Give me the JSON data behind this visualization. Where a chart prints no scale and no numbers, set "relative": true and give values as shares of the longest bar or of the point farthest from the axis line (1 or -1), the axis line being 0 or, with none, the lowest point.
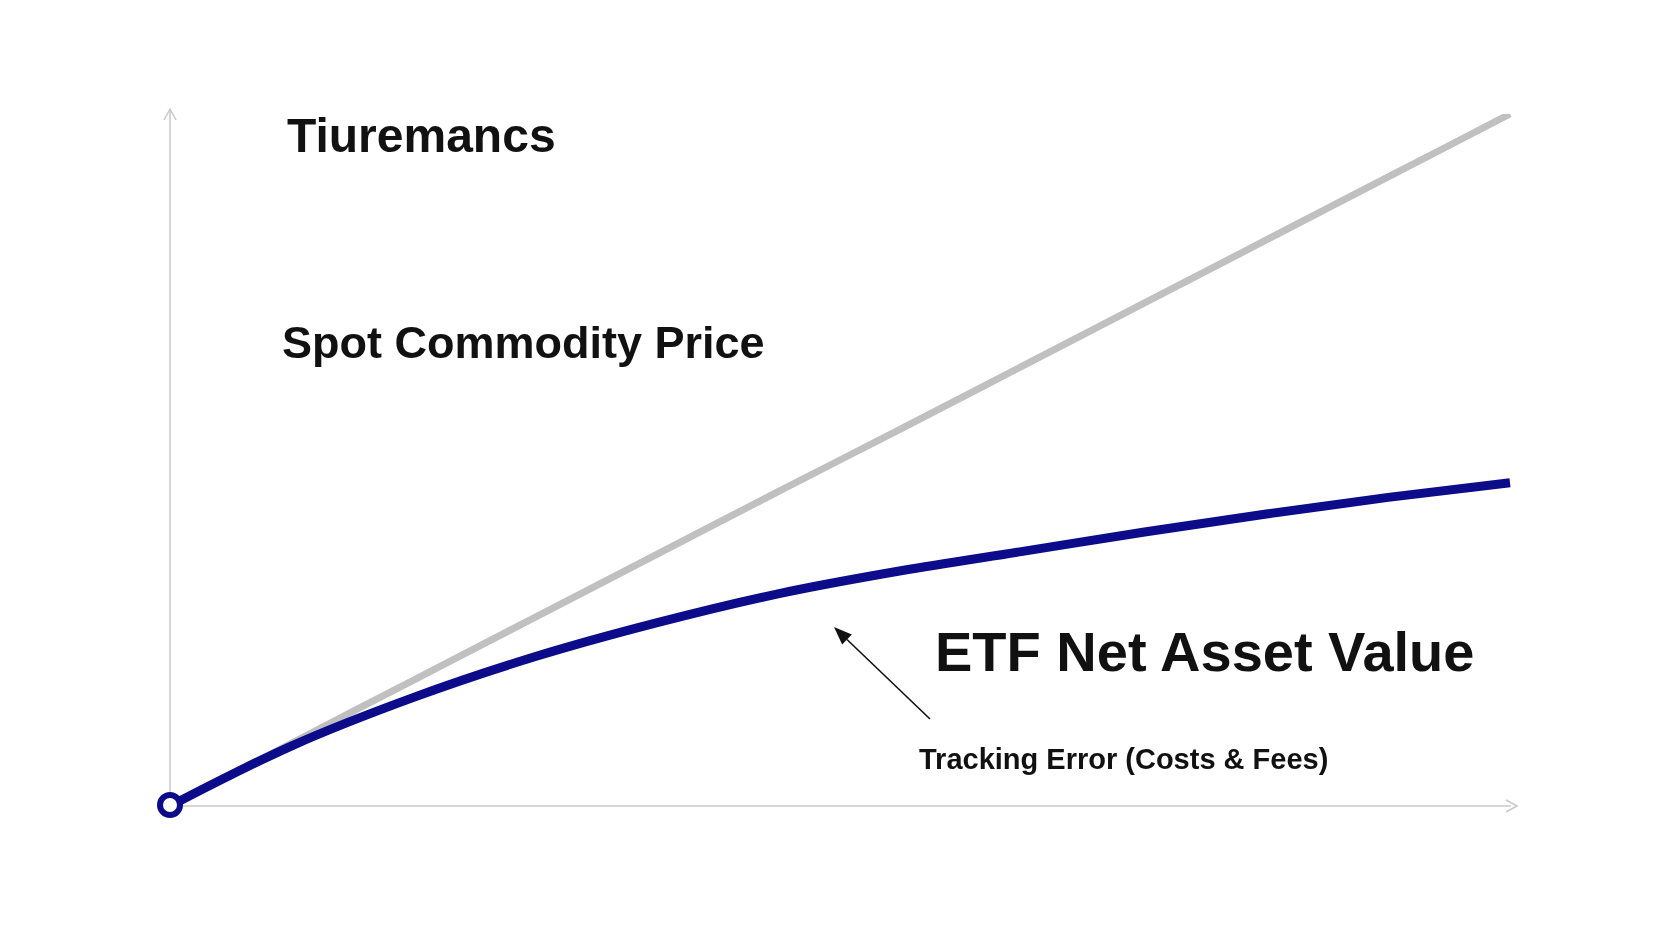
{
  "chart_data": {
    "type": "line",
    "title": "Tiuremancs",
    "relative": true,
    "marker": "none",
    "line_style": "solid",
    "categories": [
      null,
      null,
      null,
      null,
      null,
      null,
      null,
      null,
      null,
      null,
      null,
      null
    ],
    "series": [
      {
        "name": "Spot Commodity Price",
        "color": "#c0c0c0",
        "values": [
          0,
          0.091,
          0.182,
          0.273,
          0.364,
          0.455,
          0.545,
          0.636,
          0.727,
          0.818,
          0.909,
          1
        ]
      },
      {
        "name": "ETF Net Asset Value",
        "color": "#0c0c8a",
        "values": [
          0,
          0.087,
          0.157,
          0.216,
          0.265,
          0.307,
          0.34,
          0.368,
          0.396,
          0.422,
          0.446,
          0.467
        ]
      }
    ],
    "annotations": [
      "Tracking Error (Costs & Fees)"
    ]
  }
}
